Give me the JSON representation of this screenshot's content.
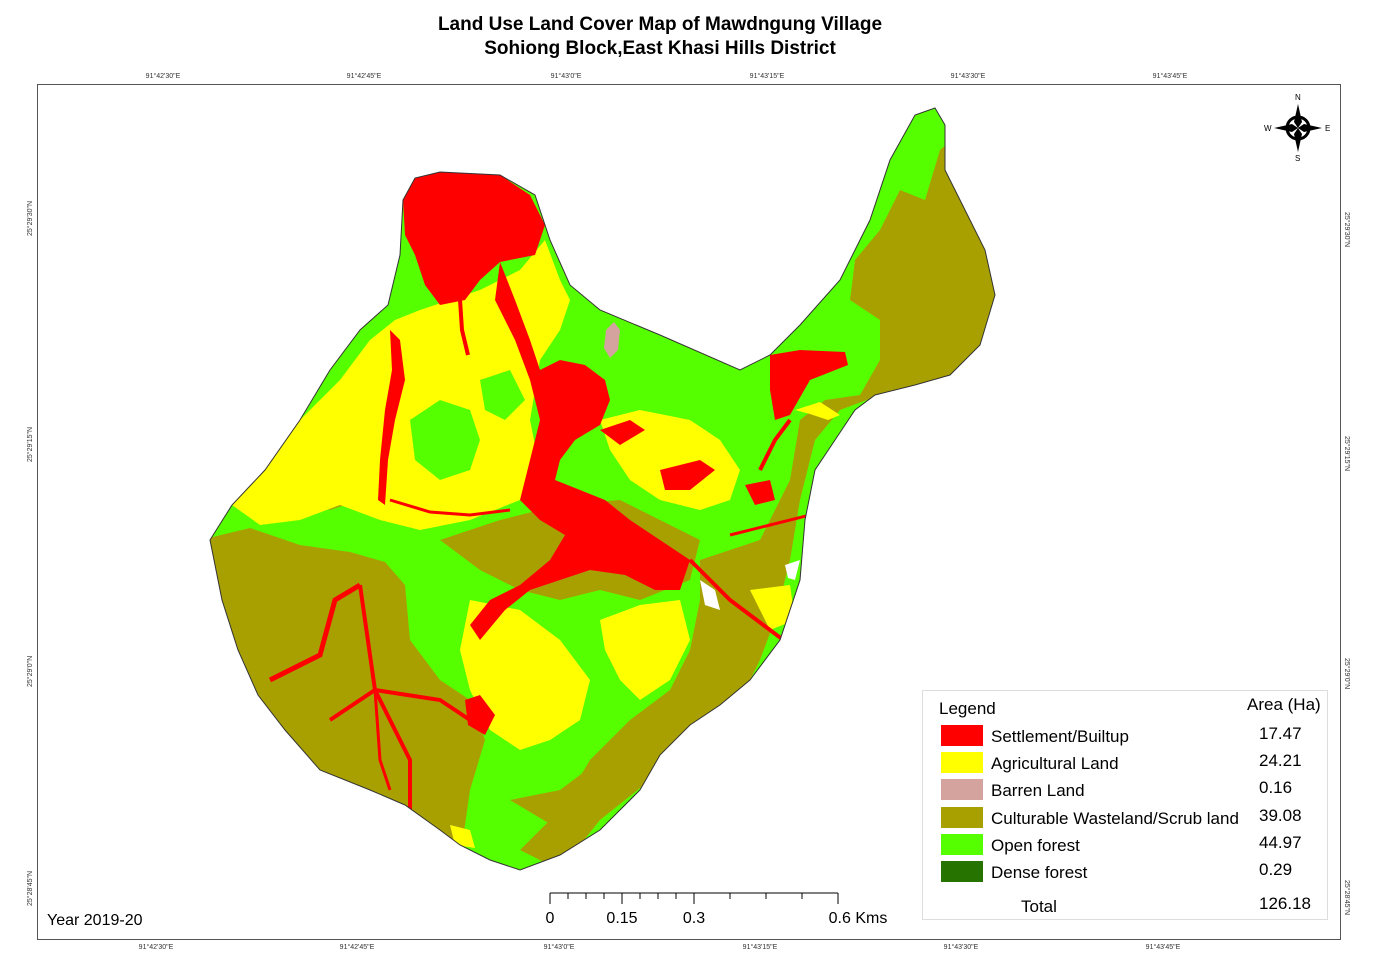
{
  "map": {
    "title_line1": "Land Use Land Cover Map of Mawdngung Village",
    "title_line2": "Sohiong Block,East Khasi Hills District",
    "year": "Year 2019-20",
    "longitude_labels": [
      "91°42'30\"E",
      "91°42'45\"E",
      "91°43'0\"E",
      "91°43'15\"E",
      "91°43'30\"E",
      "91°43'45\"E"
    ],
    "latitude_labels": [
      "25°29'30\"N",
      "25°29'15\"N",
      "25°29'0\"N",
      "25°28'45\"N"
    ],
    "compass": {
      "n": "N",
      "s": "S",
      "e": "E",
      "w": "W"
    },
    "scale_bar": {
      "labels": [
        "0",
        "0.15",
        "0.3",
        "0.6 Kms"
      ]
    }
  },
  "legend": {
    "title": "Legend",
    "area_header": "Area (Ha)",
    "items": [
      {
        "label": "Settlement/Builtup",
        "area": "17.47",
        "color": "#ff0000"
      },
      {
        "label": "Agricultural Land",
        "area": "24.21",
        "color": "#ffff00"
      },
      {
        "label": "Barren Land",
        "area": "0.16",
        "color": "#d4a39e"
      },
      {
        "label": "Culturable Wasteland/Scrub land",
        "area": "39.08",
        "color": "#a8a000"
      },
      {
        "label": "Open forest",
        "area": "44.97",
        "color": "#55ff00"
      },
      {
        "label": "Dense forest",
        "area": "0.29",
        "color": "#267300"
      }
    ],
    "total_label": "Total",
    "total_value": "126.18"
  }
}
